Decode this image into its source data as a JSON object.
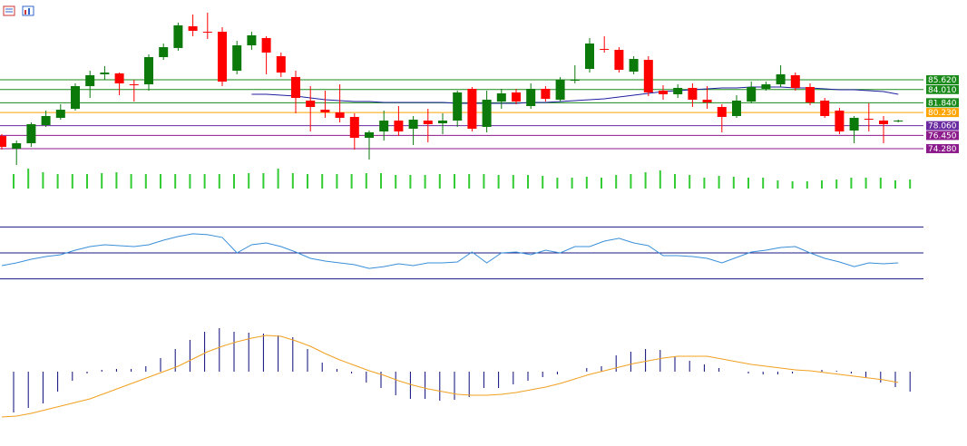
{
  "chart_data": [
    {
      "type": "candlestick",
      "up_color": "#0b7a0b",
      "down_color": "#ff0000",
      "ylim": [
        71.14,
        97.56
      ],
      "open": [
        76.36,
        74.27,
        75.17,
        78.15,
        79.35,
        80.84,
        84.57,
        86.52,
        86.67,
        84.87,
        84.87,
        89.35,
        90.85,
        94.43,
        93.53,
        93.53,
        87.11,
        91.29,
        92.49,
        89.5,
        86.07,
        82.19,
        80.69,
        80.25,
        79.5,
        76.06,
        77.11,
        78.9,
        77.56,
        78.9,
        78.45,
        78.9,
        84.13,
        77.86,
        82.04,
        83.53,
        81.29,
        84.13,
        82.34,
        85.47,
        87.41,
        90.7,
        90.55,
        86.96,
        88.9,
        83.83,
        83.23,
        84.28,
        82.34,
        81.14,
        79.65,
        82.04,
        84.13,
        84.87,
        86.37,
        84.43,
        82.19,
        80.54,
        77.26,
        79.2,
        78.9,
        78.75
      ],
      "high": [
        76.66,
        75.62,
        78.6,
        80.54,
        81.59,
        85.02,
        87.11,
        87.86,
        86.81,
        85.62,
        89.8,
        91.59,
        95.03,
        96.37,
        96.67,
        94.28,
        92.04,
        93.53,
        92.79,
        90.1,
        87.11,
        84.57,
        83.83,
        84.87,
        80.1,
        77.26,
        80.54,
        81.29,
        79.65,
        80.84,
        80.1,
        83.83,
        84.43,
        83.83,
        84.13,
        84.13,
        85.02,
        84.57,
        86.07,
        88.01,
        92.49,
        92.79,
        90.99,
        89.5,
        89.5,
        84.72,
        84.87,
        85.02,
        84.57,
        81.59,
        83.08,
        85.32,
        85.32,
        88.01,
        86.81,
        85.02,
        82.63,
        80.99,
        79.65,
        81.74,
        79.65,
        79.05
      ],
      "low": [
        74.12,
        71.59,
        74.57,
        77.86,
        79.05,
        80.54,
        82.63,
        85.62,
        83.08,
        82.04,
        83.83,
        88.9,
        90.4,
        92.79,
        92.34,
        84.57,
        86.52,
        90.55,
        86.52,
        86.07,
        80.1,
        77.11,
        79.35,
        78.6,
        74.12,
        72.48,
        75.62,
        76.36,
        74.87,
        75.32,
        76.66,
        77.86,
        77.11,
        76.96,
        80.84,
        81.59,
        80.84,
        82.04,
        82.04,
        85.02,
        86.81,
        90.1,
        86.81,
        86.52,
        82.93,
        82.34,
        82.63,
        81.14,
        80.84,
        76.96,
        79.35,
        81.74,
        83.83,
        84.43,
        83.83,
        81.44,
        79.35,
        76.66,
        75.17,
        77.11,
        75.17,
        78.6
      ],
      "close": [
        74.57,
        75.17,
        78.3,
        79.65,
        80.69,
        84.57,
        86.37,
        86.81,
        85.02,
        84.72,
        89.35,
        90.99,
        94.58,
        93.68,
        93.38,
        85.32,
        91.29,
        92.94,
        90.1,
        86.81,
        82.63,
        81.14,
        80.25,
        79.35,
        76.06,
        76.96,
        78.9,
        77.11,
        79.05,
        78.3,
        78.9,
        83.53,
        77.56,
        82.34,
        83.38,
        82.04,
        84.13,
        82.48,
        85.62,
        85.62,
        91.59,
        90.55,
        87.26,
        89.05,
        83.53,
        83.23,
        84.28,
        82.34,
        81.89,
        79.5,
        82.19,
        84.43,
        84.87,
        86.52,
        84.28,
        81.89,
        79.65,
        77.11,
        79.35,
        79.05,
        78.3,
        78.9
      ],
      "ma": {
        "color": "#1f1fa0",
        "values": [
          null,
          null,
          null,
          null,
          null,
          null,
          null,
          null,
          null,
          null,
          null,
          null,
          null,
          null,
          null,
          null,
          null,
          83.23,
          83.23,
          83.08,
          82.93,
          82.63,
          82.34,
          82.19,
          82.04,
          82.04,
          81.89,
          81.89,
          81.89,
          81.89,
          81.89,
          81.74,
          81.74,
          81.74,
          81.74,
          81.74,
          81.89,
          81.89,
          82.04,
          82.19,
          82.34,
          82.48,
          82.78,
          83.08,
          83.38,
          83.68,
          83.83,
          83.98,
          84.13,
          84.28,
          84.28,
          84.43,
          84.43,
          84.43,
          84.28,
          84.28,
          84.13,
          83.98,
          83.98,
          83.83,
          83.68,
          83.23
        ]
      },
      "levels": [
        {
          "value": 85.62,
          "label": "85.620",
          "color": "#1a8a1a"
        },
        {
          "value": 84.01,
          "label": "84.010",
          "color": "#1a8a1a"
        },
        {
          "value": 81.84,
          "label": "81.840",
          "color": "#1a8a1a"
        },
        {
          "value": 80.23,
          "label": "80.230",
          "color": "#ffa500"
        },
        {
          "value": 78.06,
          "label": "78.060",
          "color": "#6a2aa0"
        },
        {
          "value": 76.45,
          "label": "76.450",
          "color": "#8b1a8b"
        },
        {
          "value": 74.28,
          "label": "74.280",
          "color": "#8b1a8b"
        }
      ]
    },
    {
      "type": "bar",
      "color": "#33cc33",
      "ylim": [
        0,
        25
      ],
      "values": [
        16,
        22,
        18,
        16,
        16,
        16,
        17,
        18,
        16,
        16,
        16,
        16,
        16,
        16,
        16,
        16,
        17,
        17,
        22,
        17,
        16,
        16,
        16,
        16,
        17,
        17,
        15,
        15,
        15,
        16,
        16,
        16,
        16,
        15,
        15,
        15,
        14,
        12,
        12,
        13,
        12,
        15,
        16,
        18,
        20,
        16,
        15,
        12,
        14,
        13,
        12,
        12,
        9,
        8,
        8,
        9,
        10,
        12,
        12,
        12,
        9,
        10
      ]
    },
    {
      "type": "line",
      "color": "#3a8fd8",
      "ylim": [
        20,
        80
      ],
      "levels": [
        70,
        50,
        30
      ],
      "level_color": "#1a1a80",
      "values": [
        40.2,
        42.3,
        45.1,
        47.2,
        48.6,
        52.1,
        54.9,
        56.3,
        55.6,
        54.9,
        56.3,
        59.8,
        62.6,
        64.7,
        64.0,
        61.9,
        50.0,
        56.3,
        57.7,
        54.9,
        50.7,
        45.8,
        43.7,
        42.3,
        40.9,
        38.1,
        39.5,
        41.6,
        40.2,
        42.3,
        42.3,
        43.0,
        50.7,
        42.3,
        50.0,
        50.7,
        48.6,
        52.1,
        50.0,
        54.9,
        54.9,
        59.1,
        61.2,
        57.7,
        55.6,
        47.9,
        47.9,
        47.2,
        45.8,
        42.3,
        46.5,
        50.7,
        52.1,
        54.2,
        54.9,
        50.0,
        45.8,
        43.0,
        39.5,
        42.3,
        41.6,
        42.3
      ]
    },
    {
      "type": "macd",
      "ylim": [
        -5.5,
        5.5
      ],
      "bar_color": "#0a0a7a",
      "signal_color": "#f0a020",
      "values": [
        -4.5,
        -4.0,
        -3.5,
        -2.2,
        -1.0,
        -0.2,
        0.2,
        0.3,
        0.3,
        0.6,
        1.5,
        2.5,
        3.5,
        4.4,
        4.8,
        4.4,
        4.3,
        4.2,
        4.0,
        3.8,
        2.5,
        1.0,
        0.3,
        -0.2,
        -1.2,
        -1.8,
        -2.6,
        -3.0,
        -3.0,
        -3.2,
        -3.1,
        -2.8,
        -1.8,
        -1.8,
        -1.4,
        -1.0,
        -0.6,
        -0.3,
        0,
        0.4,
        0.6,
        1.8,
        2.2,
        2.5,
        2.4,
        1.7,
        1.2,
        0.8,
        0.4,
        0,
        -0.2,
        -0.3,
        -0.3,
        -0.2,
        0,
        0.2,
        0.1,
        -0.2,
        -0.7,
        -1.2,
        -1.7,
        -2.2
      ],
      "signal": [
        -5.0,
        -4.9,
        -4.6,
        -4.2,
        -3.8,
        -3.4,
        -3.0,
        -2.4,
        -1.8,
        -1.2,
        -0.6,
        0,
        0.6,
        1.4,
        2.2,
        2.8,
        3.3,
        3.7,
        4.0,
        3.9,
        3.4,
        2.8,
        2.0,
        1.3,
        0.7,
        0.1,
        -0.4,
        -1.0,
        -1.5,
        -1.9,
        -2.2,
        -2.5,
        -2.6,
        -2.6,
        -2.5,
        -2.3,
        -2.0,
        -1.7,
        -1.3,
        -0.8,
        -0.3,
        0.1,
        0.5,
        0.9,
        1.2,
        1.5,
        1.7,
        1.7,
        1.7,
        1.4,
        1.1,
        0.8,
        0.6,
        0.4,
        0.2,
        0.1,
        -0.1,
        -0.3,
        -0.5,
        -0.7,
        -0.9,
        -1.2
      ]
    }
  ]
}
